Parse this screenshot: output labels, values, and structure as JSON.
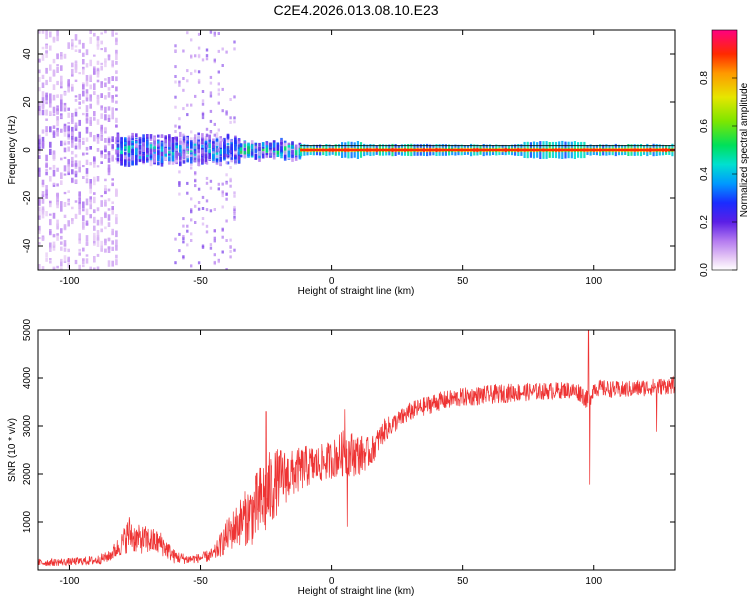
{
  "page_title": "C2E4.2026.013.08.10.E23",
  "chart_data": [
    {
      "type": "heatmap",
      "title": "C2E4.2026.013.08.10.E23",
      "xlabel": "Height of straight line (km)",
      "ylabel": "Frequency (Hz)",
      "xlim": [
        -112,
        131
      ],
      "ylim": [
        -50,
        50
      ],
      "x_ticks": [
        -100,
        -50,
        0,
        50,
        100
      ],
      "y_ticks": [
        -40,
        -20,
        0,
        20,
        40
      ],
      "x_tick_labels": [
        "-100",
        "-50",
        "0",
        "50",
        "100"
      ],
      "y_tick_labels": [
        "-40",
        "-20",
        "0",
        "20",
        "40"
      ],
      "colorbar": {
        "label": "Normalized spectral amplitude",
        "range": [
          0,
          1
        ],
        "ticks": [
          0.0,
          0.2,
          0.4,
          0.6,
          0.8
        ],
        "tick_labels": [
          "0.0",
          "0.2",
          "0.4",
          "0.6",
          "0.8"
        ]
      },
      "bands": [
        {
          "x_start": -112,
          "x_end": -82,
          "freq_half_width": 50,
          "amplitude": 0.2,
          "density": "high"
        },
        {
          "x_start": -82,
          "x_end": -35,
          "freq_half_width": 7,
          "amplitude": 0.45,
          "density": "high"
        },
        {
          "x_start": -35,
          "x_end": -12,
          "freq_half_width": 4,
          "amplitude": 0.55,
          "density": "medium"
        },
        {
          "x_start": -12,
          "x_end": 131,
          "freq_half_width": 2,
          "amplitude": 0.95,
          "density": "line"
        }
      ]
    },
    {
      "type": "line",
      "xlabel": "Height of straight line (km)",
      "ylabel": "SNR (10 * v/v)",
      "xlim": [
        -112,
        131
      ],
      "ylim": [
        0,
        5000
      ],
      "x_ticks": [
        -100,
        -50,
        0,
        50,
        100
      ],
      "y_ticks": [
        1000,
        2000,
        3000,
        4000,
        5000
      ],
      "x_tick_labels": [
        "-100",
        "-50",
        "0",
        "50",
        "100"
      ],
      "y_tick_labels": [
        "1000",
        "2000",
        "3000",
        "4000",
        "5000"
      ],
      "color": "#ee3333",
      "series": [
        {
          "name": "SNR",
          "x": [
            -112,
            -100,
            -90,
            -85,
            -80,
            -77,
            -75,
            -70,
            -65,
            -60,
            -55,
            -50,
            -45,
            -40,
            -35,
            -30,
            -25,
            -20,
            -15,
            -10,
            -5,
            0,
            5,
            10,
            15,
            20,
            25,
            30,
            40,
            50,
            60,
            70,
            80,
            90,
            95,
            98,
            100,
            110,
            120,
            131
          ],
          "y": [
            150,
            170,
            200,
            280,
            550,
            780,
            650,
            620,
            550,
            280,
            220,
            250,
            320,
            700,
            1000,
            1200,
            1550,
            1900,
            2000,
            2150,
            2200,
            2300,
            2450,
            2400,
            2450,
            2900,
            3100,
            3300,
            3500,
            3600,
            3650,
            3700,
            3720,
            3750,
            3700,
            3500,
            3800,
            3750,
            3800,
            3850
          ],
          "noise": [
            80,
            80,
            100,
            120,
            250,
            400,
            300,
            300,
            250,
            150,
            100,
            100,
            150,
            350,
            500,
            700,
            900,
            650,
            500,
            450,
            400,
            400,
            500,
            450,
            300,
            250,
            200,
            200,
            200,
            200,
            200,
            200,
            180,
            180,
            200,
            200,
            180,
            180,
            180,
            180
          ]
        }
      ],
      "spikes": [
        {
          "x": -25,
          "y": 3300
        },
        {
          "x": 5,
          "y": 3350
        },
        {
          "x": 6,
          "y": 900
        },
        {
          "x": 98,
          "y": 5000
        },
        {
          "x": 98.5,
          "y": 1780
        },
        {
          "x": 124,
          "y": 2880
        }
      ]
    }
  ]
}
